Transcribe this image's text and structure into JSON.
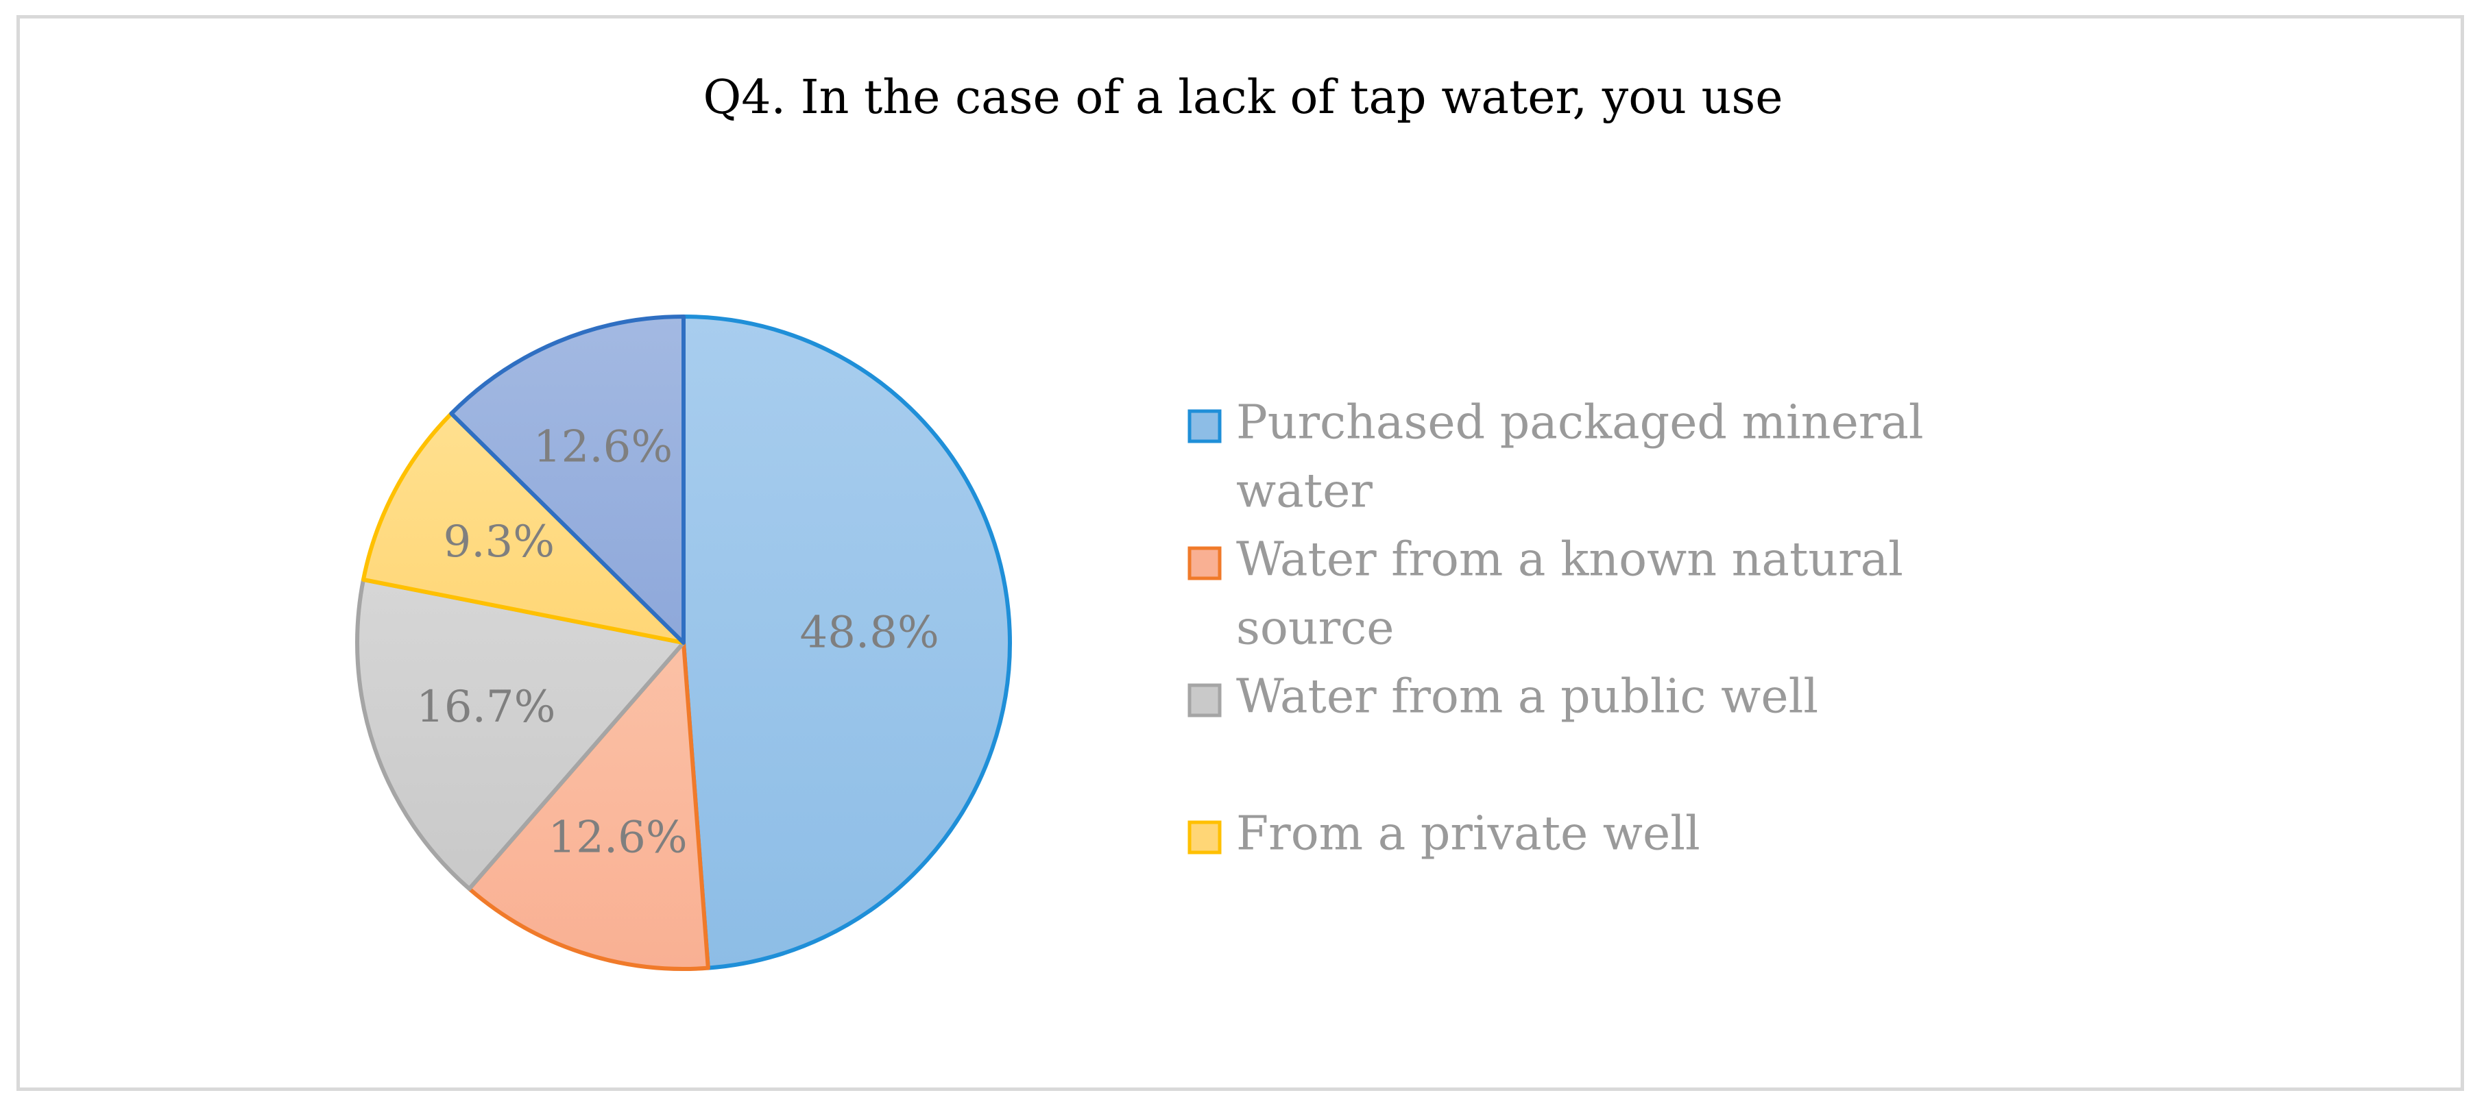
{
  "chart_data": {
    "type": "pie",
    "title": "Q4. In the case of a lack of tap water, you use",
    "legend_position": "right",
    "categories": [
      "Purchased packaged mineral water",
      "Water from a known natural source",
      "Water from a public well",
      "From a private well",
      ""
    ],
    "values": [
      48.8,
      12.6,
      16.7,
      9.3,
      12.6
    ],
    "labels": [
      "48.8%",
      "12.6%",
      "16.7%",
      "9.3%",
      "12.6%"
    ],
    "legend": [
      {
        "lines": [
          "Purchased packaged mineral",
          "water"
        ]
      },
      {
        "lines": [
          "Water from a known natural",
          "source"
        ]
      },
      {
        "lines": [
          "Water from a public well"
        ]
      },
      {
        "lines": [
          " From a private well"
        ]
      }
    ],
    "colors": {
      "fills": [
        "#8dbde6",
        "#f9b093",
        "#c9c9c9",
        "#ffd676",
        "#8ea8da"
      ],
      "fills_light": [
        "#a8cdee",
        "#fbc1a6",
        "#d6d6d6",
        "#ffe08f",
        "#a3b9e2"
      ],
      "strokes": [
        "#1f8fd8",
        "#f07a2a",
        "#a5a5a5",
        "#ffc000",
        "#2f6fc2"
      ]
    }
  }
}
